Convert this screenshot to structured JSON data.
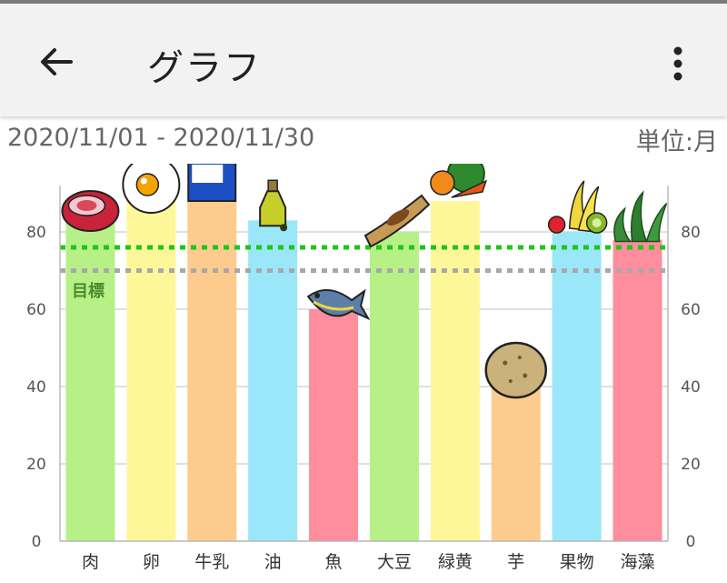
{
  "header": {
    "title": "グラフ",
    "back_icon": "arrow-left-icon",
    "menu_icon": "more-vert-icon"
  },
  "date_range": "2020/11/01 - 2020/11/30",
  "unit_label": "単位:月",
  "target_label": "目標",
  "chart_data": {
    "type": "bar",
    "categories": [
      "肉",
      "卵",
      "牛乳",
      "油",
      "魚",
      "大豆",
      "緑黄",
      "芋",
      "果物",
      "海藻"
    ],
    "values": [
      84,
      88,
      88,
      83,
      60,
      80,
      88,
      40,
      80,
      78
    ],
    "colors": [
      "#b6f087",
      "#fdf79a",
      "#fdcb8e",
      "#99e7f8",
      "#fe8d9d",
      "#b6f087",
      "#fdf79a",
      "#fdcb8e",
      "#99e7f8",
      "#fe8d9d"
    ],
    "icons": [
      "meat-icon",
      "egg-icon",
      "milk-carton-icon",
      "oil-bottle-icon",
      "fish-icon",
      "soybean-icon",
      "vegetables-icon",
      "potato-icon",
      "fruits-icon",
      "seaweed-icon"
    ],
    "ylim": [
      0,
      90
    ],
    "yticks": [
      0,
      20,
      40,
      60,
      80
    ],
    "reference_lines": [
      {
        "value": 76,
        "color": "#22c41b",
        "style": "dotted"
      },
      {
        "value": 70,
        "color": "#a8a8a8",
        "style": "dotted"
      }
    ],
    "grid": true,
    "axes": "left-and-right"
  }
}
